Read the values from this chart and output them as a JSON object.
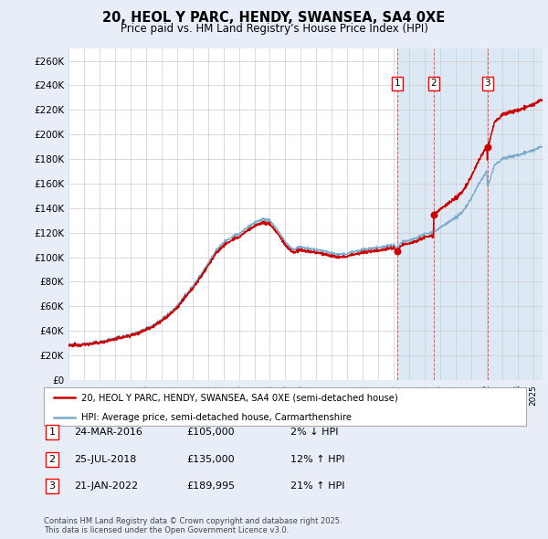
{
  "title": "20, HEOL Y PARC, HENDY, SWANSEA, SA4 0XE",
  "subtitle": "Price paid vs. HM Land Registry's House Price Index (HPI)",
  "legend_label_red": "20, HEOL Y PARC, HENDY, SWANSEA, SA4 0XE (semi-detached house)",
  "legend_label_blue": "HPI: Average price, semi-detached house, Carmarthenshire",
  "footnote": "Contains HM Land Registry data © Crown copyright and database right 2025.\nThis data is licensed under the Open Government Licence v3.0.",
  "transactions": [
    {
      "num": 1,
      "date": "24-MAR-2016",
      "date_val": 2016.23,
      "price": 105000,
      "hpi_diff": "2% ↓ HPI"
    },
    {
      "num": 2,
      "date": "25-JUL-2018",
      "date_val": 2018.56,
      "price": 135000,
      "hpi_diff": "12% ↑ HPI"
    },
    {
      "num": 3,
      "date": "21-JAN-2022",
      "date_val": 2022.05,
      "price": 189995,
      "hpi_diff": "21% ↑ HPI"
    }
  ],
  "ylim": [
    0,
    270000
  ],
  "yticks": [
    0,
    20000,
    40000,
    60000,
    80000,
    100000,
    120000,
    140000,
    160000,
    180000,
    200000,
    220000,
    240000,
    260000
  ],
  "background_color": "#e8eef8",
  "plot_bg": "#ffffff",
  "shaded_bg": "#dde8f5",
  "grid_color": "#cccccc",
  "red_color": "#cc0000",
  "blue_color": "#7aaacc"
}
